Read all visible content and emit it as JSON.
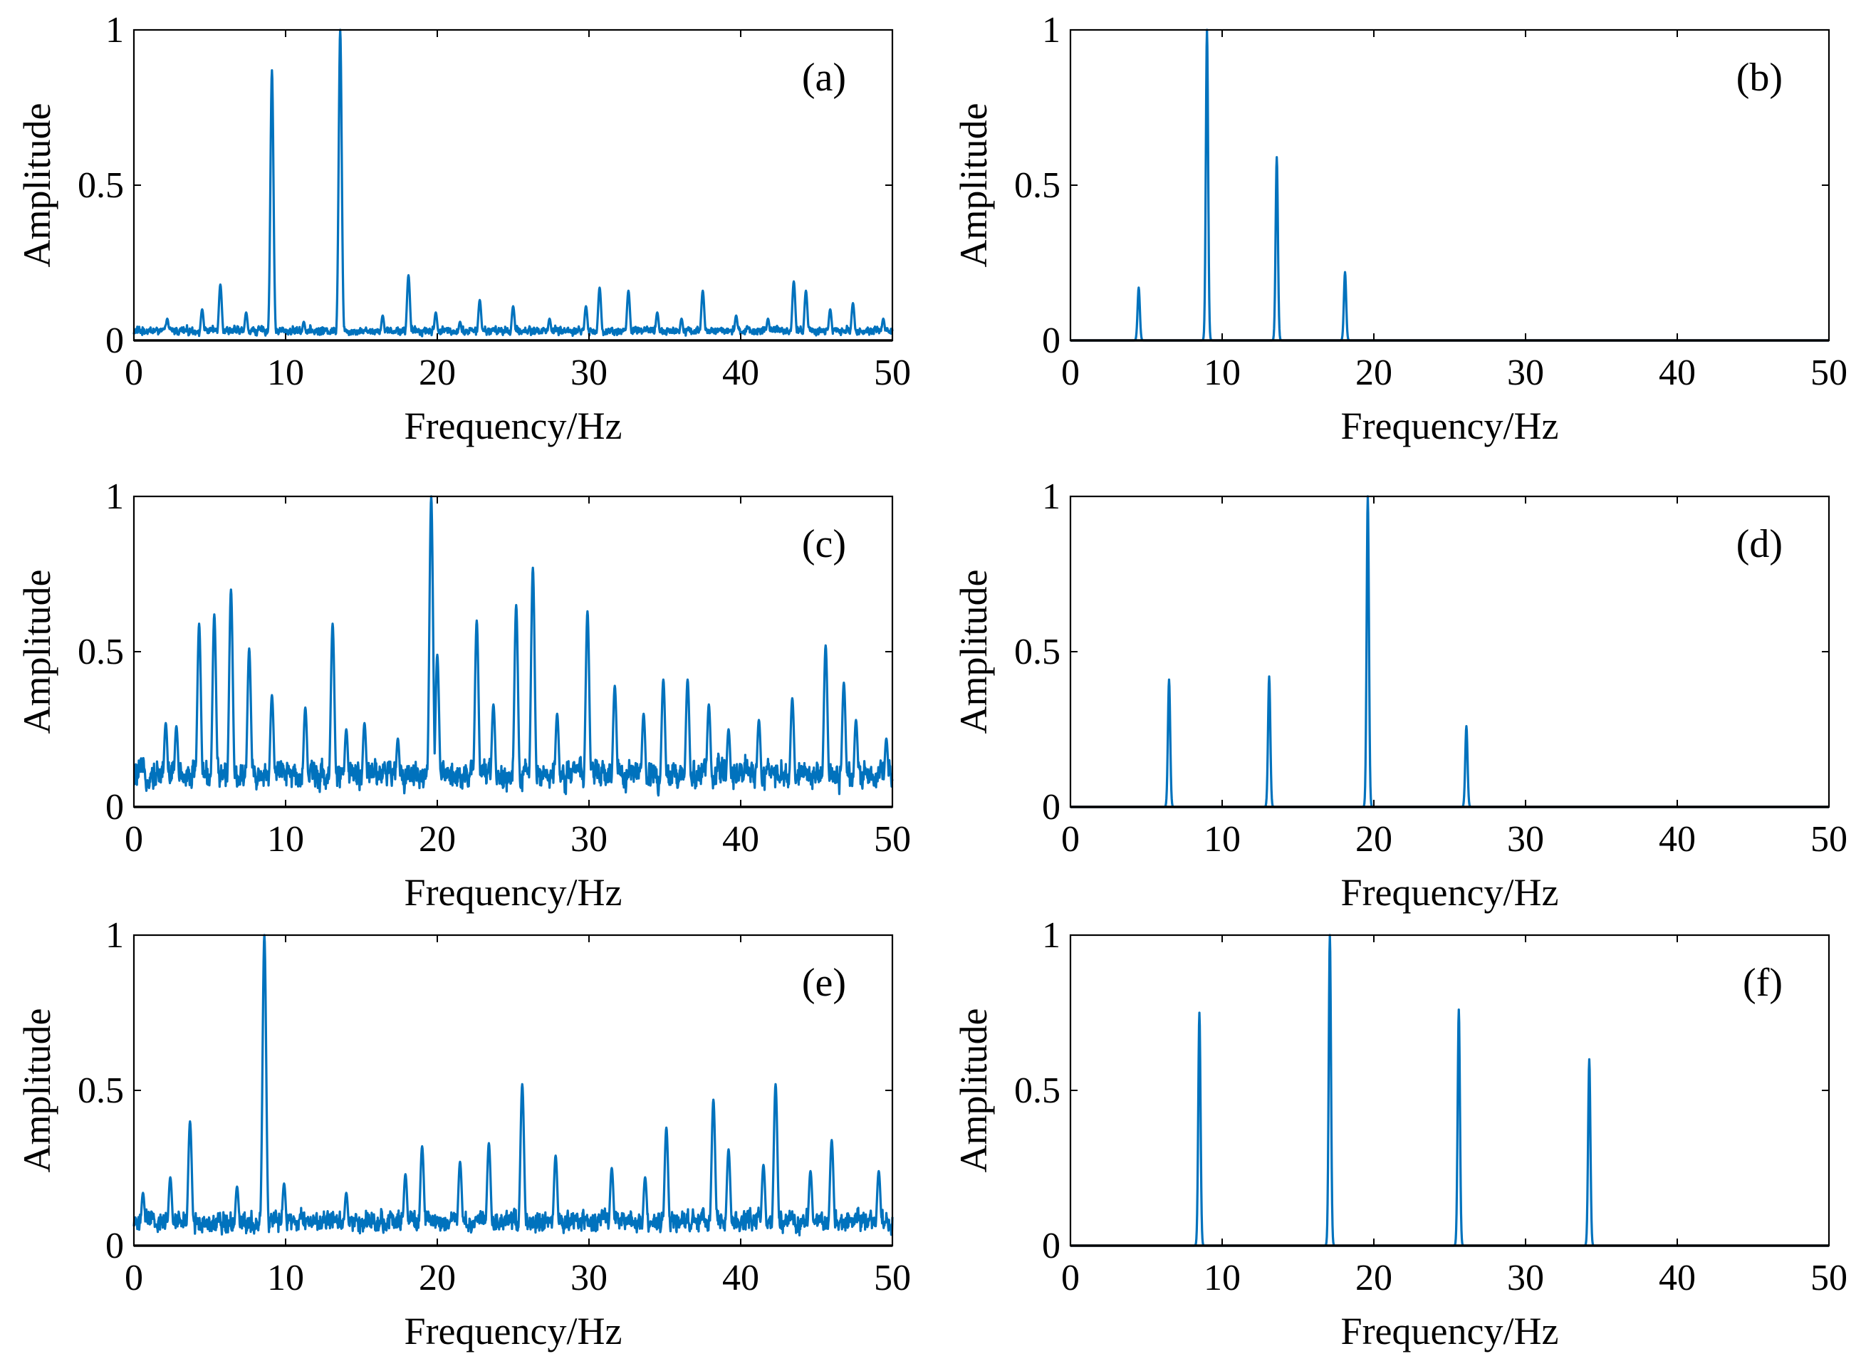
{
  "figure": {
    "series_color": "#0072BD",
    "axis_color": "#000000",
    "background": "#ffffff"
  },
  "chart_data": [
    {
      "type": "line",
      "panel": "(a)",
      "xlabel": "Frequency/Hz",
      "ylabel": "Amplitude",
      "xlim": [
        0,
        50
      ],
      "ylim": [
        0,
        1
      ],
      "xticks": [
        0,
        10,
        20,
        30,
        40,
        50
      ],
      "yticks": [
        0,
        0.5,
        1
      ],
      "ytick_labels": [
        "0",
        "0.5",
        "1"
      ],
      "peaks": [
        {
          "x": 9.1,
          "y": 0.87
        },
        {
          "x": 13.6,
          "y": 1.0
        },
        {
          "x": 5.7,
          "y": 0.18
        },
        {
          "x": 18.1,
          "y": 0.21
        },
        {
          "x": 30.7,
          "y": 0.17
        },
        {
          "x": 32.6,
          "y": 0.16
        },
        {
          "x": 37.5,
          "y": 0.16
        },
        {
          "x": 43.5,
          "y": 0.19
        },
        {
          "x": 44.3,
          "y": 0.16
        },
        {
          "x": 47.4,
          "y": 0.12
        },
        {
          "x": 22.8,
          "y": 0.13
        },
        {
          "x": 25.0,
          "y": 0.11
        },
        {
          "x": 2.2,
          "y": 0.07
        },
        {
          "x": 4.5,
          "y": 0.1
        },
        {
          "x": 7.4,
          "y": 0.09
        },
        {
          "x": 11.2,
          "y": 0.06
        },
        {
          "x": 16.4,
          "y": 0.08
        },
        {
          "x": 19.9,
          "y": 0.09
        },
        {
          "x": 21.5,
          "y": 0.06
        },
        {
          "x": 27.4,
          "y": 0.07
        },
        {
          "x": 29.8,
          "y": 0.11
        },
        {
          "x": 34.5,
          "y": 0.09
        },
        {
          "x": 36.1,
          "y": 0.07
        },
        {
          "x": 39.7,
          "y": 0.08
        },
        {
          "x": 41.8,
          "y": 0.07
        },
        {
          "x": 45.9,
          "y": 0.1
        },
        {
          "x": 49.4,
          "y": 0.07
        }
      ],
      "noise_level": 0.025,
      "noise_jitter": 0.03,
      "peak_width": 0.1
    },
    {
      "type": "line",
      "panel": "(b)",
      "xlabel": "Frequency/Hz",
      "ylabel": "Amplitude",
      "xlim": [
        0,
        50
      ],
      "ylim": [
        0,
        1
      ],
      "xticks": [
        0,
        10,
        20,
        30,
        40,
        50
      ],
      "yticks": [
        0,
        0.5,
        1
      ],
      "ytick_labels": [
        "0",
        "0.5",
        "1"
      ],
      "peaks": [
        {
          "x": 4.5,
          "y": 0.17
        },
        {
          "x": 9.0,
          "y": 1.0
        },
        {
          "x": 13.6,
          "y": 0.59
        },
        {
          "x": 18.1,
          "y": 0.22
        }
      ],
      "noise_level": 0,
      "noise_jitter": 0,
      "peak_width": 0.075
    },
    {
      "type": "line",
      "panel": "(c)",
      "xlabel": "Frequency/Hz",
      "ylabel": "Amplitude",
      "xlim": [
        0,
        50
      ],
      "ylim": [
        0,
        1
      ],
      "xticks": [
        0,
        10,
        20,
        30,
        40,
        50
      ],
      "yticks": [
        0,
        0.5,
        1
      ],
      "ytick_labels": [
        "0",
        "0.5",
        "1"
      ],
      "peaks": [
        {
          "x": 4.3,
          "y": 0.59
        },
        {
          "x": 5.3,
          "y": 0.62
        },
        {
          "x": 6.4,
          "y": 0.7
        },
        {
          "x": 7.6,
          "y": 0.51
        },
        {
          "x": 9.1,
          "y": 0.36
        },
        {
          "x": 11.3,
          "y": 0.32
        },
        {
          "x": 13.1,
          "y": 0.59
        },
        {
          "x": 15.2,
          "y": 0.27
        },
        {
          "x": 19.6,
          "y": 1.0
        },
        {
          "x": 20.0,
          "y": 0.49
        },
        {
          "x": 22.6,
          "y": 0.6
        },
        {
          "x": 25.2,
          "y": 0.65
        },
        {
          "x": 26.3,
          "y": 0.77
        },
        {
          "x": 29.9,
          "y": 0.63
        },
        {
          "x": 31.7,
          "y": 0.39
        },
        {
          "x": 34.9,
          "y": 0.41
        },
        {
          "x": 36.5,
          "y": 0.41
        },
        {
          "x": 37.9,
          "y": 0.33
        },
        {
          "x": 43.4,
          "y": 0.35
        },
        {
          "x": 45.6,
          "y": 0.52
        },
        {
          "x": 46.8,
          "y": 0.4
        },
        {
          "x": 2.1,
          "y": 0.27
        },
        {
          "x": 2.8,
          "y": 0.26
        },
        {
          "x": 14.0,
          "y": 0.25
        },
        {
          "x": 17.4,
          "y": 0.22
        },
        {
          "x": 23.7,
          "y": 0.33
        },
        {
          "x": 27.9,
          "y": 0.3
        },
        {
          "x": 33.6,
          "y": 0.3
        },
        {
          "x": 39.2,
          "y": 0.25
        },
        {
          "x": 41.2,
          "y": 0.28
        },
        {
          "x": 47.6,
          "y": 0.28
        },
        {
          "x": 49.6,
          "y": 0.22
        }
      ],
      "noise_level": 0.07,
      "noise_jitter": 0.12,
      "peak_width": 0.12
    },
    {
      "type": "line",
      "panel": "(d)",
      "xlabel": "Frequency/Hz",
      "ylabel": "Amplitude",
      "xlim": [
        0,
        50
      ],
      "ylim": [
        0,
        1
      ],
      "xticks": [
        0,
        10,
        20,
        30,
        40,
        50
      ],
      "yticks": [
        0,
        0.5,
        1
      ],
      "ytick_labels": [
        "0",
        "0.5",
        "1"
      ],
      "peaks": [
        {
          "x": 6.5,
          "y": 0.41
        },
        {
          "x": 13.1,
          "y": 0.42
        },
        {
          "x": 19.6,
          "y": 1.0
        },
        {
          "x": 26.1,
          "y": 0.26
        }
      ],
      "noise_level": 0,
      "noise_jitter": 0,
      "peak_width": 0.075
    },
    {
      "type": "line",
      "panel": "(e)",
      "xlabel": "Frequency/Hz",
      "ylabel": "Amplitude",
      "xlim": [
        0,
        50
      ],
      "ylim": [
        0,
        1
      ],
      "xticks": [
        0,
        10,
        20,
        30,
        40,
        50
      ],
      "yticks": [
        0,
        0.5,
        1
      ],
      "ytick_labels": [
        "0",
        "0.5",
        "1"
      ],
      "peaks": [
        {
          "x": 3.7,
          "y": 0.4
        },
        {
          "x": 8.6,
          "y": 1.0
        },
        {
          "x": 25.6,
          "y": 0.52
        },
        {
          "x": 35.1,
          "y": 0.38
        },
        {
          "x": 38.2,
          "y": 0.47
        },
        {
          "x": 39.2,
          "y": 0.31
        },
        {
          "x": 42.3,
          "y": 0.52
        },
        {
          "x": 46.0,
          "y": 0.34
        },
        {
          "x": 27.8,
          "y": 0.29
        },
        {
          "x": 23.4,
          "y": 0.33
        },
        {
          "x": 19.0,
          "y": 0.32
        },
        {
          "x": 21.5,
          "y": 0.27
        },
        {
          "x": 2.4,
          "y": 0.22
        },
        {
          "x": 0.6,
          "y": 0.17
        },
        {
          "x": 6.8,
          "y": 0.19
        },
        {
          "x": 9.9,
          "y": 0.2
        },
        {
          "x": 14.0,
          "y": 0.17
        },
        {
          "x": 17.9,
          "y": 0.23
        },
        {
          "x": 31.5,
          "y": 0.25
        },
        {
          "x": 33.7,
          "y": 0.22
        },
        {
          "x": 41.5,
          "y": 0.26
        },
        {
          "x": 44.6,
          "y": 0.24
        },
        {
          "x": 49.1,
          "y": 0.24
        }
      ],
      "noise_level": 0.06,
      "noise_jitter": 0.08,
      "peak_width": 0.12
    },
    {
      "type": "line",
      "panel": "(f)",
      "xlabel": "Frequency/Hz",
      "ylabel": "Amplitude",
      "xlim": [
        0,
        50
      ],
      "ylim": [
        0,
        1
      ],
      "xticks": [
        0,
        10,
        20,
        30,
        40,
        50
      ],
      "yticks": [
        0,
        0.5,
        1
      ],
      "ytick_labels": [
        "0",
        "0.5",
        "1"
      ],
      "peaks": [
        {
          "x": 8.5,
          "y": 0.75
        },
        {
          "x": 17.1,
          "y": 1.0
        },
        {
          "x": 25.6,
          "y": 0.76
        },
        {
          "x": 34.2,
          "y": 0.6
        }
      ],
      "noise_level": 0,
      "noise_jitter": 0,
      "peak_width": 0.075
    }
  ]
}
